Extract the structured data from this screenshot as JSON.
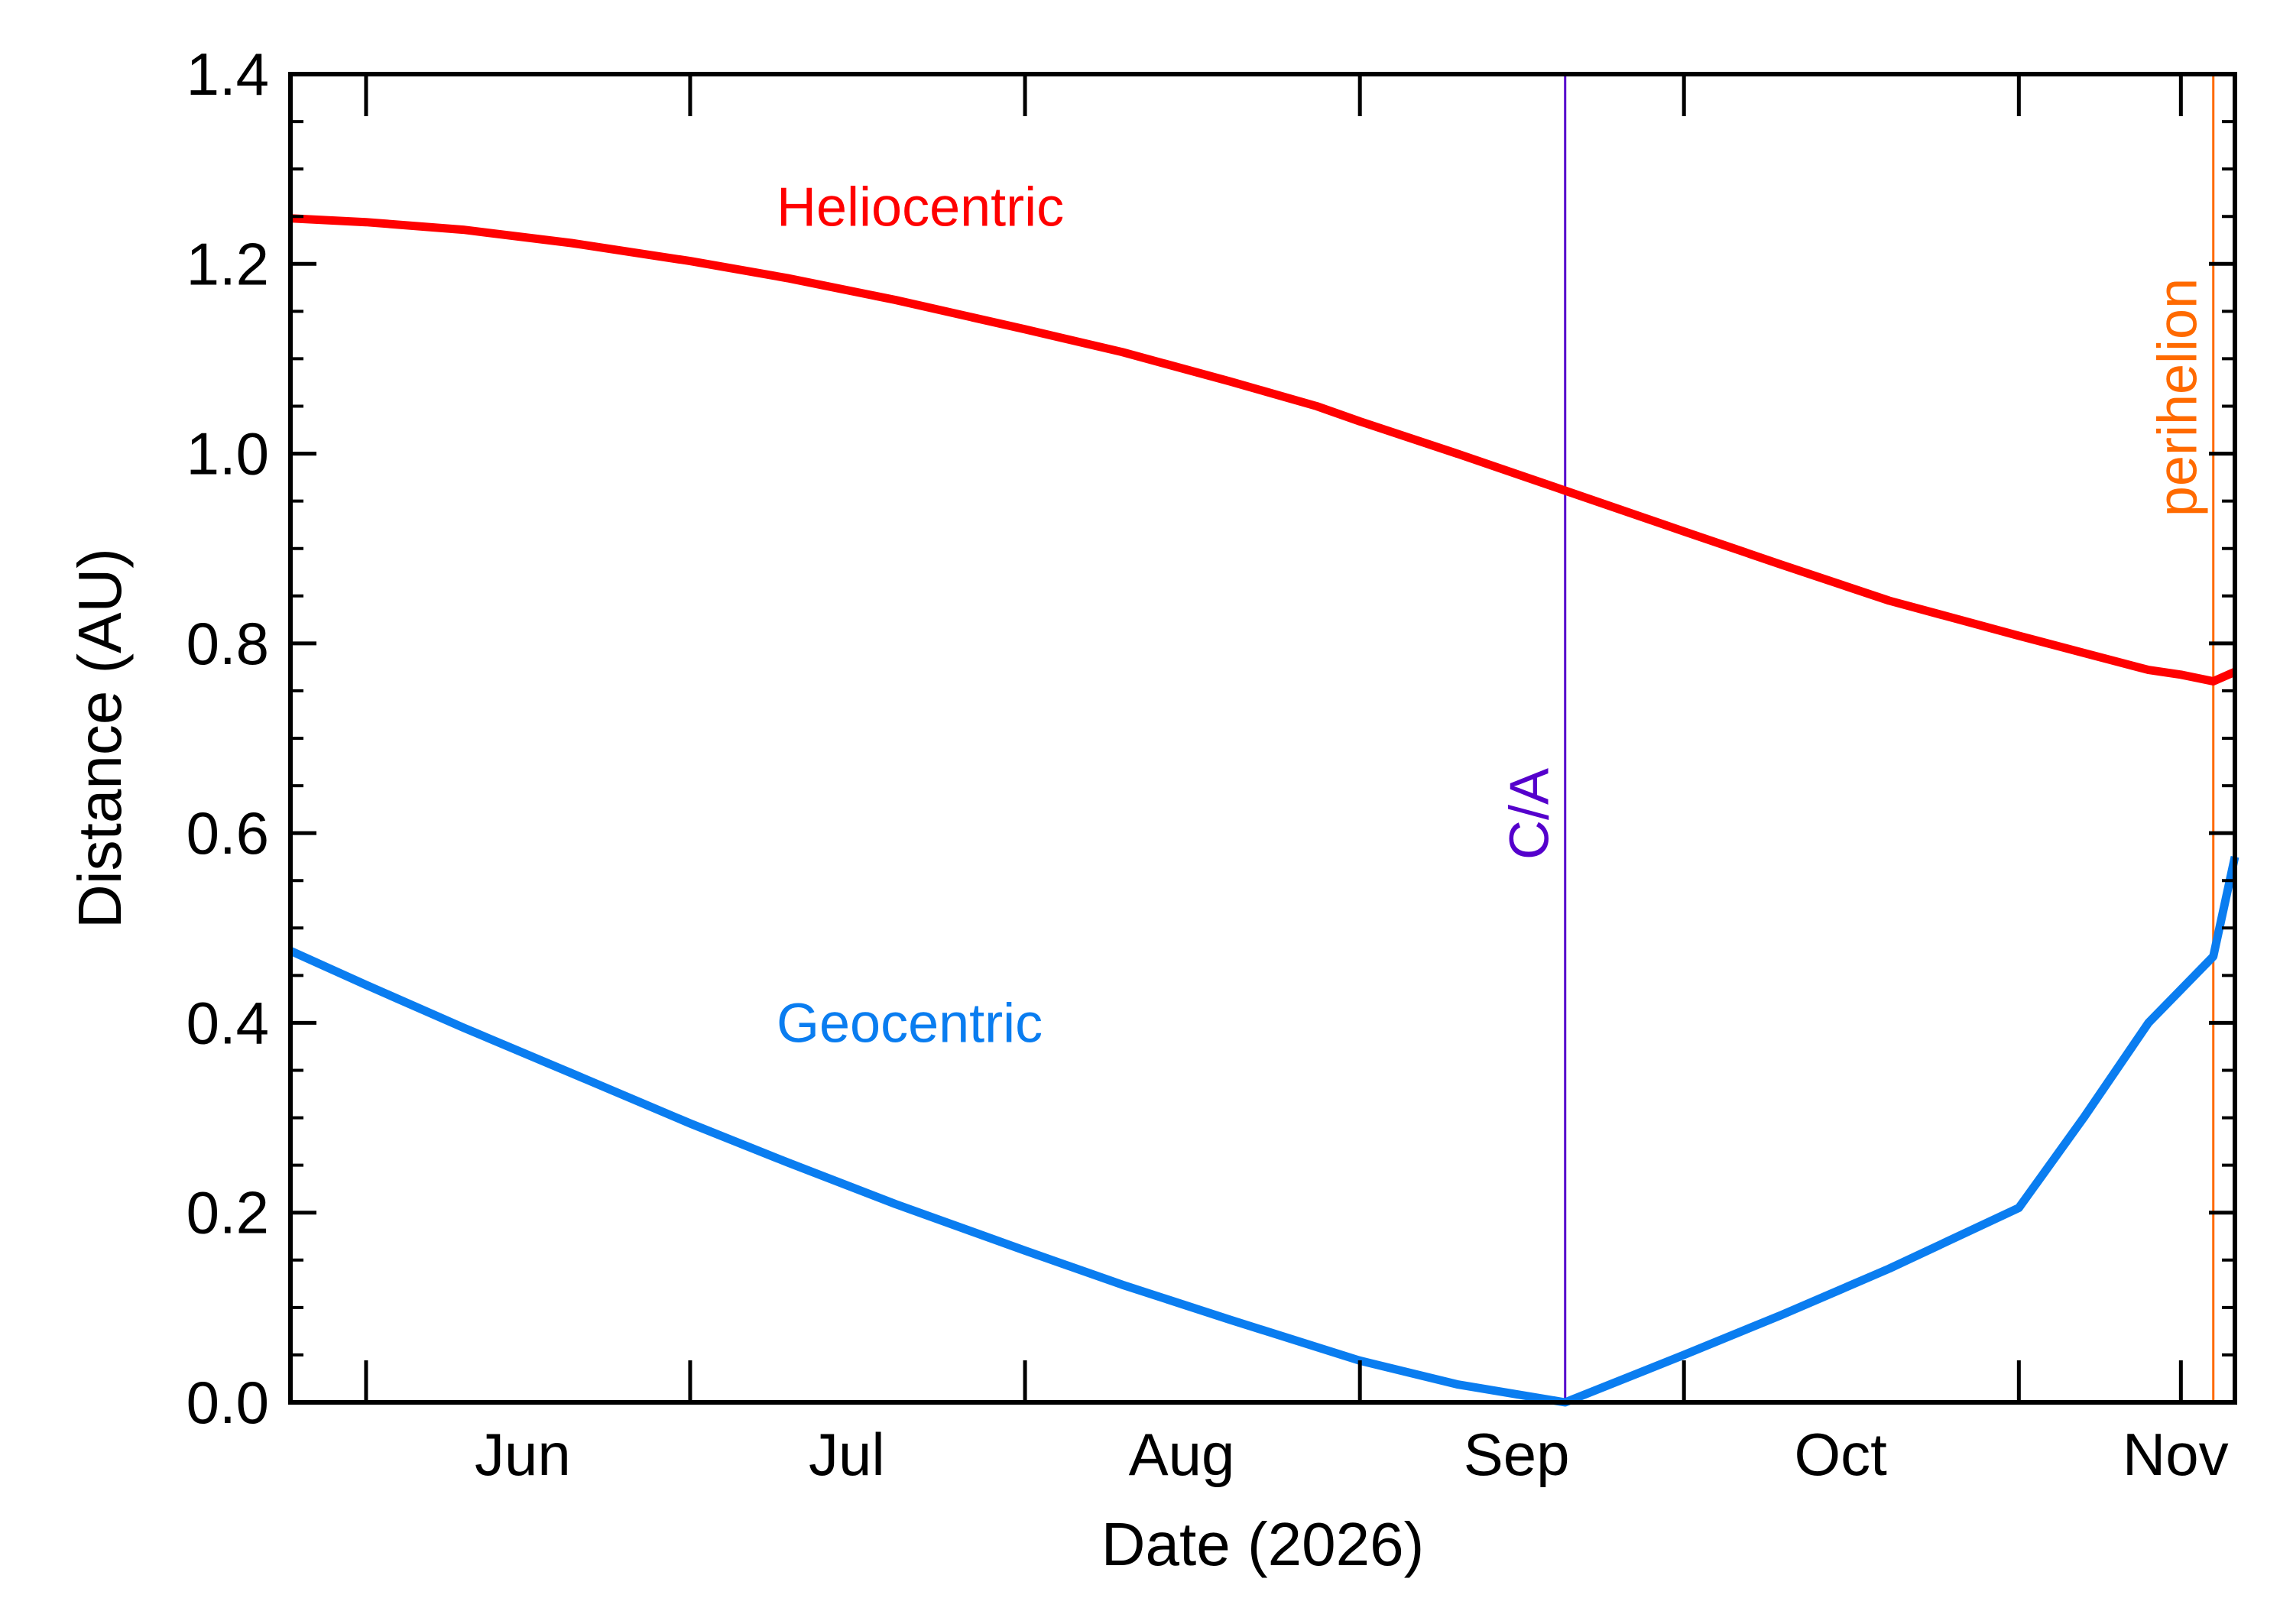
{
  "chart_data": {
    "type": "line",
    "xlabel": "Date (2026)",
    "ylabel": "Distance (AU)",
    "xlim": [
      "2026-05-25",
      "2026-11-21"
    ],
    "ylim": [
      0.0,
      1.4
    ],
    "y_ticks": [
      0.0,
      0.2,
      0.4,
      0.6,
      0.8,
      1.0,
      1.2,
      1.4
    ],
    "y_tick_labels": [
      "0.0",
      "0.2",
      "0.4",
      "0.6",
      "0.8",
      "1.0",
      "1.2",
      "1.4"
    ],
    "x_major_ticks": [
      "2026-06-01",
      "2026-07-01",
      "2026-08-01",
      "2026-09-01",
      "2026-10-01",
      "2026-11-01"
    ],
    "x_tick_labels": [
      {
        "label": "Jun",
        "date": "2026-06-01"
      },
      {
        "label": "Jul",
        "date": "2026-07-01"
      },
      {
        "label": "Aug",
        "date": "2026-08-01"
      },
      {
        "label": "Sep",
        "date": "2026-09-01"
      },
      {
        "label": "Oct",
        "date": "2026-10-01"
      },
      {
        "label": "Nov",
        "date": "2026-11-01"
      }
    ],
    "grid": false,
    "series": [
      {
        "name": "Heliocentric",
        "color": "#ff0000",
        "points": [
          [
            "2026-05-25",
            1.248
          ],
          [
            "2026-06-01",
            1.244
          ],
          [
            "2026-06-10",
            1.236
          ],
          [
            "2026-06-20",
            1.222
          ],
          [
            "2026-07-01",
            1.203
          ],
          [
            "2026-07-10",
            1.185
          ],
          [
            "2026-07-20",
            1.162
          ],
          [
            "2026-08-01",
            1.131
          ],
          [
            "2026-08-10",
            1.107
          ],
          [
            "2026-08-20",
            1.076
          ],
          [
            "2026-08-28",
            1.05
          ],
          [
            "2026-09-01",
            1.034
          ],
          [
            "2026-09-10",
            1.0
          ],
          [
            "2026-09-20",
            0.961
          ],
          [
            "2026-10-01",
            0.918
          ],
          [
            "2026-10-10",
            0.883
          ],
          [
            "2026-10-20",
            0.845
          ],
          [
            "2026-11-01",
            0.808
          ],
          [
            "2026-11-07",
            0.79
          ],
          [
            "2026-11-13",
            0.772
          ],
          [
            "2026-11-16",
            0.767
          ],
          [
            "2026-11-19",
            0.76
          ],
          [
            "2026-11-21",
            0.77
          ]
        ]
      },
      {
        "name": "Geocentric",
        "color": "#0a7df0",
        "points": [
          [
            "2026-05-25",
            0.476
          ],
          [
            "2026-06-01",
            0.44
          ],
          [
            "2026-06-10",
            0.395
          ],
          [
            "2026-06-20",
            0.347
          ],
          [
            "2026-07-01",
            0.294
          ],
          [
            "2026-07-10",
            0.253
          ],
          [
            "2026-07-20",
            0.209
          ],
          [
            "2026-08-01",
            0.16
          ],
          [
            "2026-08-10",
            0.124
          ],
          [
            "2026-08-20",
            0.087
          ],
          [
            "2026-09-01",
            0.044
          ],
          [
            "2026-09-10",
            0.019
          ],
          [
            "2026-09-20",
            0.0
          ],
          [
            "2026-10-01",
            0.05
          ],
          [
            "2026-10-10",
            0.092
          ],
          [
            "2026-10-20",
            0.141
          ],
          [
            "2026-11-01",
            0.205
          ],
          [
            "2026-11-07",
            0.3
          ],
          [
            "2026-11-13",
            0.4
          ],
          [
            "2026-11-19",
            0.47
          ],
          [
            "2026-11-21",
            0.575
          ]
        ]
      }
    ],
    "series_labels": [
      {
        "text": "Heliocentric",
        "color": "#ff0000",
        "anchor": [
          "2026-07-09",
          1.24
        ]
      },
      {
        "text": "Geocentric",
        "color": "#0a7df0",
        "anchor": [
          "2026-07-09",
          0.38
        ]
      }
    ],
    "markers": [
      {
        "label": "C/A",
        "date": "2026-09-20",
        "color": "#5500cc"
      },
      {
        "label": "perihelion",
        "date": "2026-11-19",
        "color": "#ff6a00"
      }
    ]
  }
}
